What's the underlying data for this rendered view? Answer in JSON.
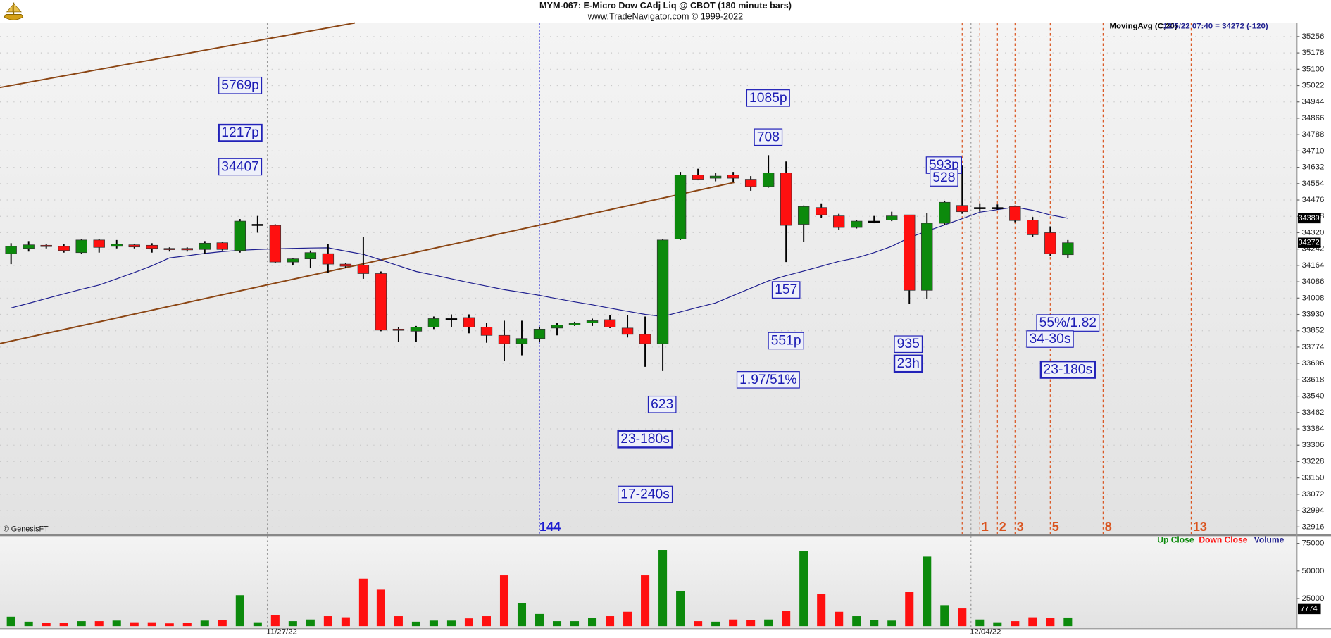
{
  "header": {
    "title": "MYM-067:  E-Micro Dow CAdj Liq @ CBOT  (180 minute bars)",
    "subtitle": "www.TradeNavigator.com © 1999-2022"
  },
  "watermark": "© GenesisFT",
  "chart_data": {
    "type": "candlestick",
    "open": [
      34220,
      34245,
      34260,
      34255,
      34225,
      34285,
      34255,
      34262,
      34260,
      34245,
      34245,
      34240,
      34272,
      34235,
      34360,
      34355,
      34180,
      34195,
      34220,
      34170,
      34165,
      34125,
      33860,
      33850,
      33870,
      33910,
      33915,
      33870,
      33830,
      33790,
      33815,
      33865,
      33880,
      33890,
      33905,
      33865,
      33835,
      33790,
      34290,
      34595,
      34580,
      34595,
      34575,
      34540,
      34605,
      34360,
      34440,
      34400,
      34345,
      34375,
      34380,
      34405,
      34045,
      34365,
      34450,
      34440,
      34440,
      34445,
      34380,
      34320,
      34215
    ],
    "high": [
      34270,
      34280,
      34265,
      34265,
      34290,
      34290,
      34285,
      34265,
      34270,
      34250,
      34250,
      34280,
      34275,
      34385,
      34400,
      34360,
      34200,
      34235,
      34265,
      34175,
      34300,
      34135,
      33870,
      33875,
      33920,
      33930,
      33930,
      33890,
      33900,
      33900,
      33870,
      33890,
      33895,
      33910,
      33925,
      33925,
      33920,
      34290,
      34610,
      34625,
      34605,
      34610,
      34590,
      34690,
      34660,
      34450,
      34460,
      34410,
      34380,
      34400,
      34420,
      34405,
      34415,
      34470,
      34640,
      34460,
      34455,
      34450,
      34395,
      34350,
      34285
    ],
    "low": [
      34170,
      34230,
      34245,
      34225,
      34220,
      34225,
      34245,
      34245,
      34225,
      34230,
      34230,
      34220,
      34235,
      34225,
      34320,
      34175,
      34165,
      34150,
      34130,
      34150,
      34100,
      33850,
      33800,
      33800,
      33860,
      33870,
      33840,
      33795,
      33710,
      33735,
      33800,
      33830,
      33875,
      33875,
      33865,
      33820,
      33680,
      33660,
      34285,
      34570,
      34565,
      34560,
      34520,
      34535,
      34180,
      34275,
      34390,
      34335,
      34340,
      34365,
      34375,
      33980,
      34005,
      34355,
      34410,
      34420,
      34430,
      34370,
      34300,
      34210,
      34200
    ],
    "close": [
      34255,
      34262,
      34255,
      34235,
      34285,
      34250,
      34265,
      34252,
      34245,
      34240,
      34238,
      34270,
      34240,
      34375,
      34360,
      34180,
      34195,
      34225,
      34170,
      34160,
      34125,
      33855,
      33855,
      33870,
      33910,
      33910,
      33870,
      33830,
      33790,
      33815,
      33860,
      33880,
      33888,
      33900,
      33870,
      33835,
      33790,
      34285,
      34595,
      34575,
      34590,
      34580,
      34540,
      34605,
      34355,
      34445,
      34405,
      34345,
      34375,
      34375,
      34400,
      34045,
      34365,
      34465,
      34420,
      34440,
      34440,
      34378,
      34310,
      34220,
      34272
    ],
    "colors": {
      "up": "#0c8a0c",
      "down": "#ff1010"
    },
    "ylim": [
      32880,
      35321
    ],
    "yticks": [
      32916,
      32994,
      33072,
      33150,
      33228,
      33306,
      33384,
      33462,
      33540,
      33618,
      33696,
      33774,
      33852,
      33930,
      34008,
      34086,
      34164,
      34242,
      34320,
      34398,
      34476,
      34554,
      34632,
      34710,
      34788,
      34866,
      34944,
      35022,
      35100,
      35178,
      35256
    ],
    "grid": true,
    "moving_average": {
      "name": "MovingAvg (C,20)",
      "color": "#1f1f8f",
      "values": [
        33961,
        33983,
        34006,
        34028,
        34050,
        34070,
        34100,
        34130,
        34162,
        34200,
        34210,
        34221,
        34230,
        34236,
        34240,
        34243,
        34245,
        34247,
        34248,
        34232,
        34217,
        34190,
        34162,
        34135,
        34118,
        34100,
        34082,
        34065,
        34048,
        34035,
        34021,
        34005,
        33990,
        33976,
        33960,
        33945,
        33930,
        33920,
        33942,
        33964,
        33985,
        34020,
        34055,
        34090,
        34115,
        34137,
        34160,
        34183,
        34200,
        34225,
        34255,
        34297,
        34327,
        34357,
        34387,
        34418,
        34430,
        34442,
        34427,
        34405,
        34389
      ]
    },
    "last_quote": "12/5/22 07:40 = 34272 (-120)",
    "trendlines": [
      {
        "color": "#8b4513",
        "index": [
          -0.63,
          19.52
        ],
        "price": [
          35013,
          35321
        ]
      },
      {
        "color": "#8b4513",
        "index": [
          -0.63,
          41.06
        ],
        "price": [
          33791,
          34560
        ]
      }
    ],
    "x_labels": [
      "11/27/22",
      "12/04/22"
    ],
    "cycle_label": 144,
    "fib_offsets": [
      1,
      2,
      3,
      5,
      8,
      13
    ],
    "annotations": [
      "5769p",
      "1217p",
      "34407",
      "1085p",
      "708",
      "593p",
      "528",
      "157",
      "551p",
      "1.97/51%",
      "623",
      "23-180s",
      "17-240s",
      "935",
      "23h",
      "55%/1.82",
      "34-30s",
      "23-180s"
    ],
    "legend": [
      "Up Close",
      "Down Close",
      "Volume"
    ],
    "volume": {
      "values": [
        8500,
        4000,
        3000,
        3000,
        4500,
        4500,
        5000,
        3500,
        3500,
        2500,
        3000,
        5000,
        5500,
        28000,
        3500,
        10000,
        4500,
        6000,
        9000,
        8000,
        43000,
        33000,
        9000,
        4000,
        5000,
        5000,
        7000,
        9000,
        46000,
        21000,
        11000,
        4500,
        4500,
        7500,
        9000,
        13000,
        46000,
        69000,
        32000,
        4500,
        4000,
        6000,
        5500,
        6000,
        14000,
        68000,
        29000,
        13000,
        9000,
        5500,
        5000,
        31000,
        63000,
        19000,
        16000,
        6000,
        3500,
        4500,
        8000,
        7500,
        7774
      ],
      "ylim": [
        0,
        81500
      ],
      "yticks": [
        25000,
        50000,
        75000
      ]
    }
  }
}
